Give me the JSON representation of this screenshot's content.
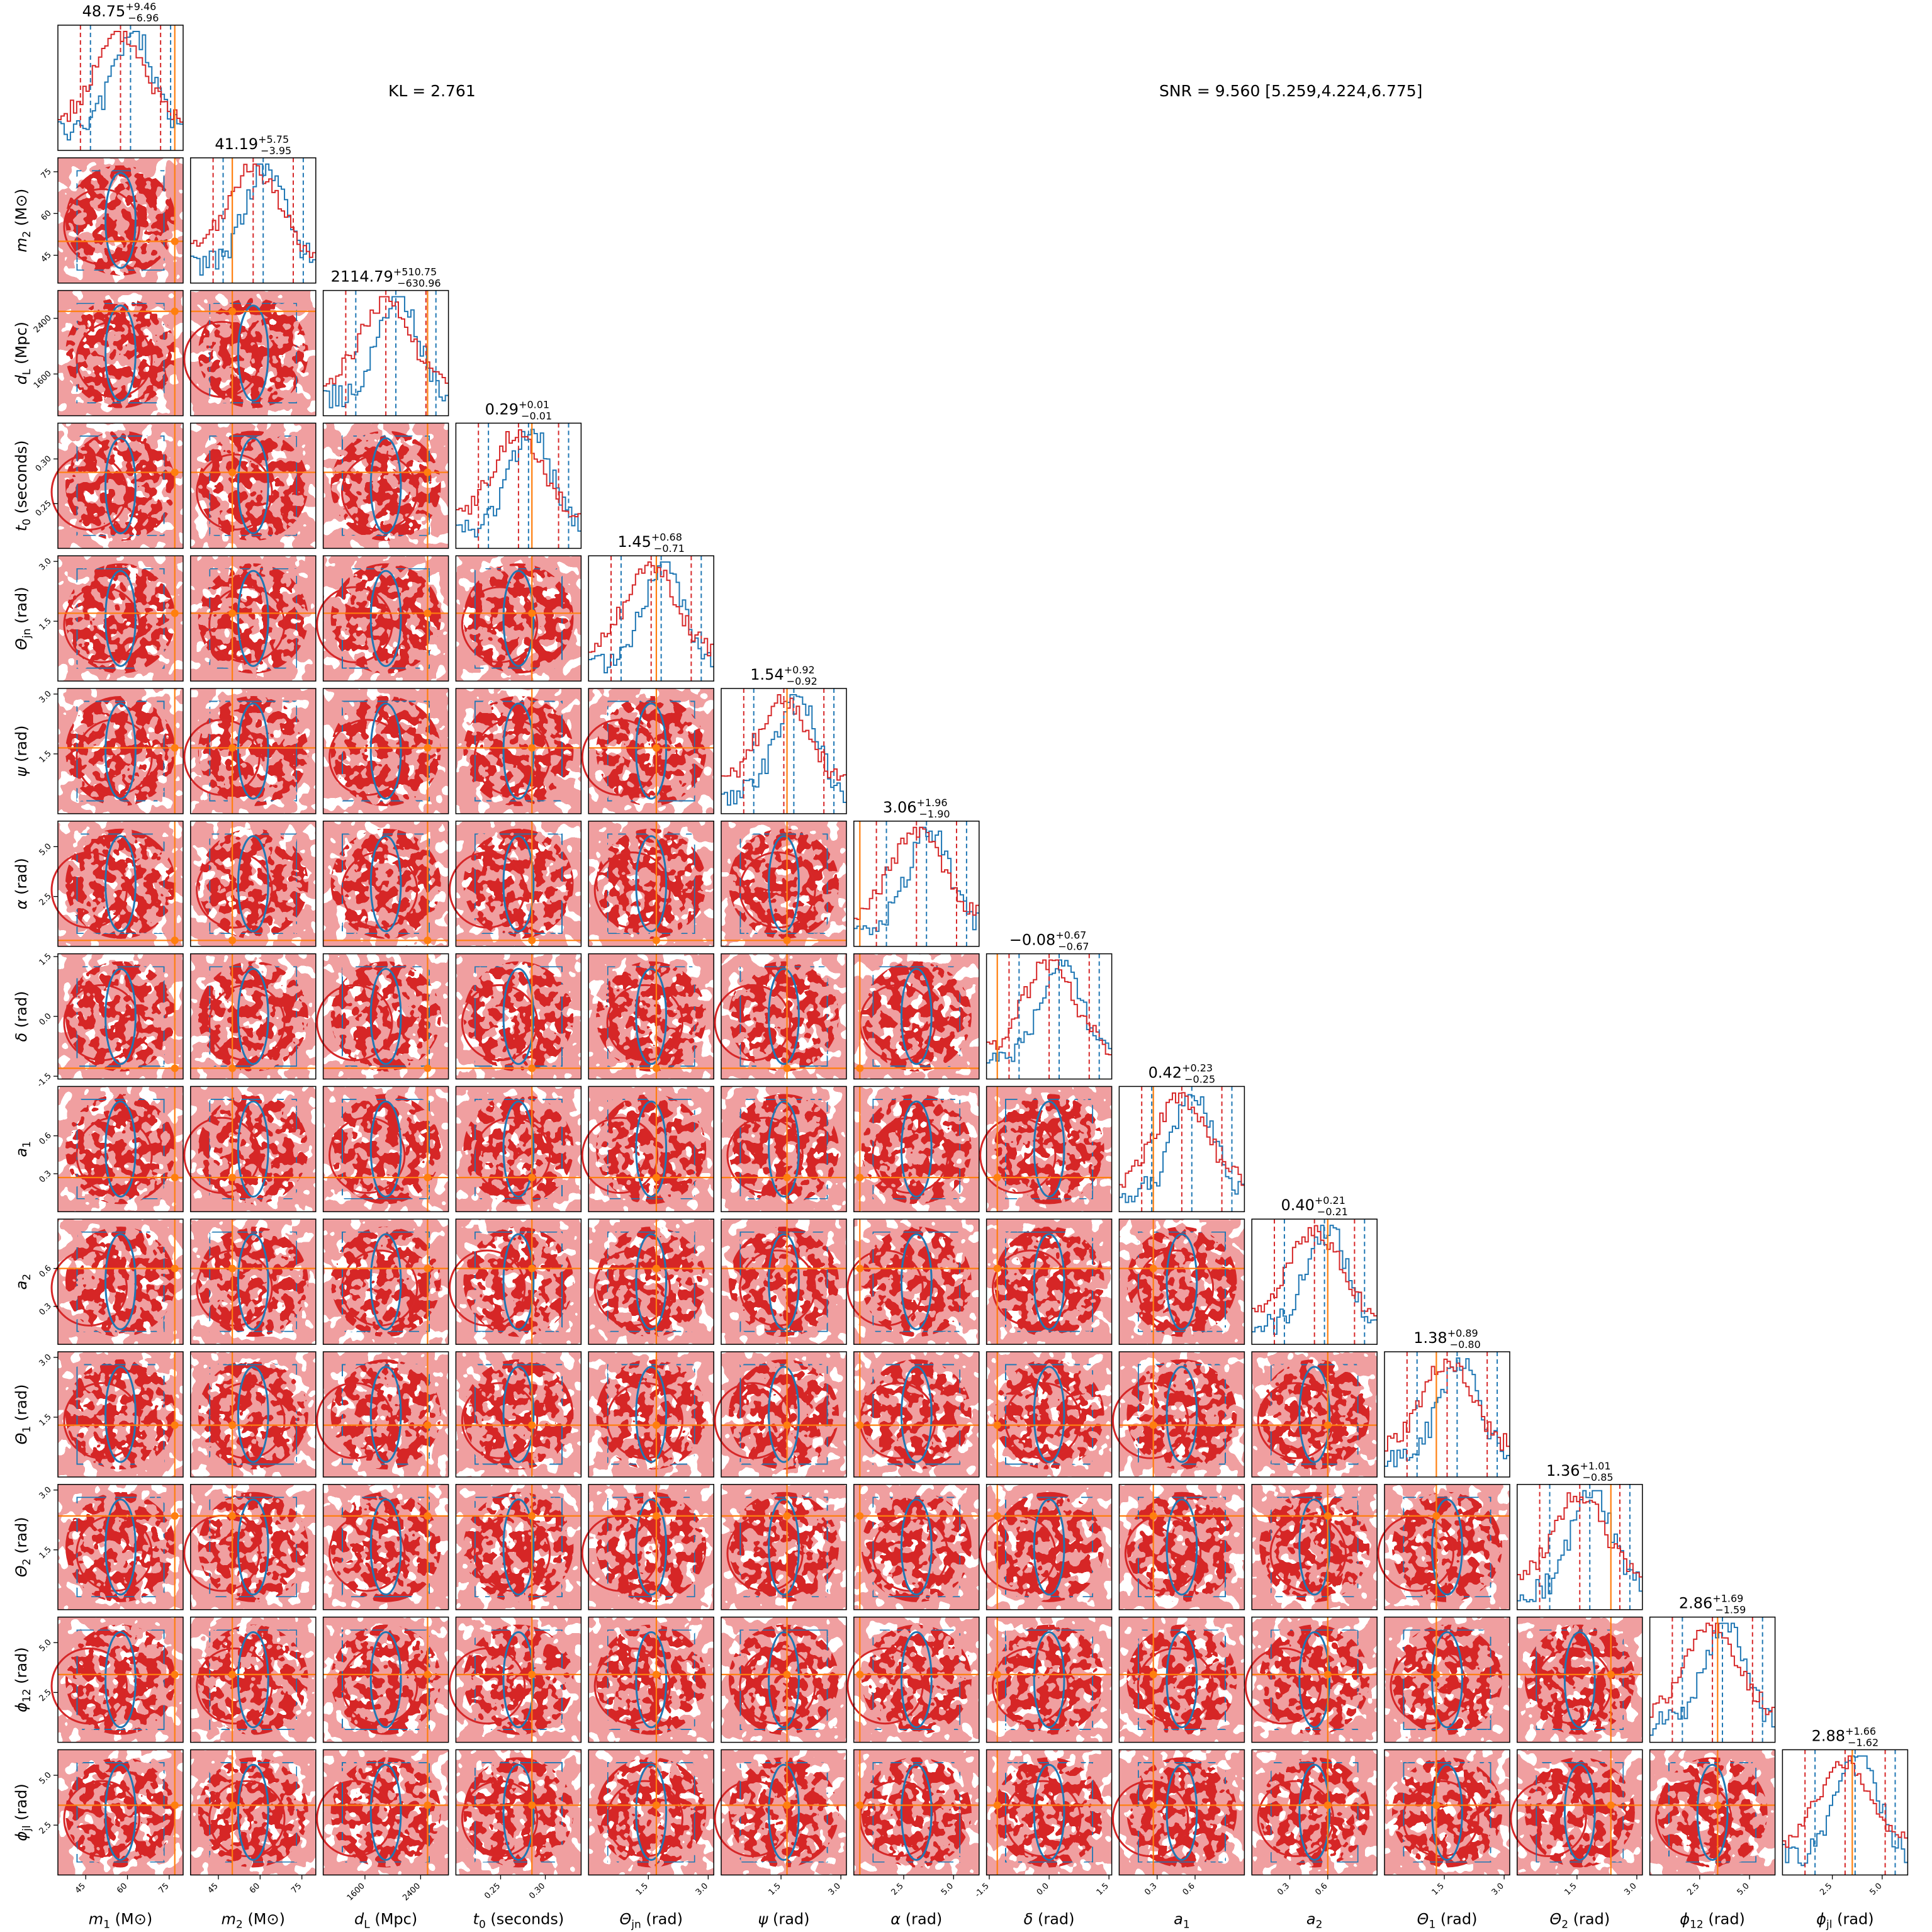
{
  "annotations": {
    "kl": "KL = 2.761",
    "snr": "SNR = 9.560 [5.259,4.224,6.775]"
  },
  "colors": {
    "posterior_a": "#d62728",
    "posterior_a_fill": "#f09a9b",
    "posterior_b": "#1f77b4",
    "truth": "#ff7f0e"
  },
  "chart_data": {
    "type": "corner",
    "title": "",
    "parameters": [
      {
        "label": "m₁ (M⊙)",
        "sym": "m",
        "sub": "1",
        "unit": "(M⊙)",
        "range": [
          35,
          80
        ],
        "ticks": [
          45,
          60,
          75
        ],
        "truth": 77,
        "title": {
          "median": "48.75",
          "plus": "+9.46",
          "minus": "−6.96"
        }
      },
      {
        "label": "m₂ (M⊙)",
        "sym": "m",
        "sub": "2",
        "unit": "(M⊙)",
        "range": [
          35,
          80
        ],
        "ticks": [
          45,
          60,
          75
        ],
        "truth": 50,
        "title": {
          "median": "41.19",
          "plus": "+5.75",
          "minus": "−3.95"
        }
      },
      {
        "label": "d_L (Mpc)",
        "sym": "d",
        "sub": "L",
        "unit": "(Mpc)",
        "range": [
          1000,
          2800
        ],
        "ticks": [
          1600,
          2400
        ],
        "truth": 2500,
        "title": {
          "median": "2114.79",
          "plus": "+510.75",
          "minus": "−630.96"
        }
      },
      {
        "label": "t₀ (seconds)",
        "sym": "t",
        "sub": "0",
        "unit": "(seconds)",
        "range": [
          0.2,
          0.34
        ],
        "ticks": [
          0.25,
          0.3
        ],
        "tickfmt": 2,
        "truth": 0.285,
        "title": {
          "median": "0.29",
          "plus": "+0.01",
          "minus": "−0.01"
        }
      },
      {
        "label": "Θ_jn (rad)",
        "sym": "Θ",
        "sub": "jn",
        "unit": "(rad)",
        "range": [
          0,
          3.14
        ],
        "ticks": [
          1.5,
          3.0
        ],
        "tickfmt": 1,
        "truth": 1.7,
        "title": {
          "median": "1.45",
          "plus": "+0.68",
          "minus": "−0.71"
        }
      },
      {
        "label": "ψ (rad)",
        "sym": "ψ",
        "sub": "",
        "unit": "(rad)",
        "range": [
          0,
          3.14
        ],
        "ticks": [
          1.5,
          3.0
        ],
        "tickfmt": 1,
        "truth": 1.65,
        "title": {
          "median": "1.54",
          "plus": "+0.92",
          "minus": "−0.92"
        }
      },
      {
        "label": "α (rad)",
        "sym": "α",
        "sub": "",
        "unit": "(rad)",
        "range": [
          0,
          6.28
        ],
        "ticks": [
          2.5,
          5.0
        ],
        "tickfmt": 1,
        "truth": 0.3,
        "title": {
          "median": "3.06",
          "plus": "+1.96",
          "minus": "−1.90"
        }
      },
      {
        "label": "δ (rad)",
        "sym": "δ",
        "sub": "",
        "unit": "(rad)",
        "range": [
          -1.57,
          1.57
        ],
        "ticks": [
          -1.5,
          0.0,
          1.5
        ],
        "tickfmt": 1,
        "truth": -1.3,
        "title": {
          "median": "−0.08",
          "plus": "+0.67",
          "minus": "−0.67"
        }
      },
      {
        "label": "a₁",
        "sym": "a",
        "sub": "1",
        "unit": "",
        "range": [
          0,
          0.99
        ],
        "ticks": [
          0.3,
          0.6
        ],
        "tickfmt": 1,
        "truth": 0.27,
        "title": {
          "median": "0.42",
          "plus": "+0.23",
          "minus": "−0.25"
        }
      },
      {
        "label": "a₂",
        "sym": "a",
        "sub": "2",
        "unit": "",
        "range": [
          0,
          0.99
        ],
        "ticks": [
          0.3,
          0.6
        ],
        "tickfmt": 1,
        "truth": 0.6,
        "title": {
          "median": "0.40",
          "plus": "+0.21",
          "minus": "−0.21"
        }
      },
      {
        "label": "Θ₁ (rad)",
        "sym": "Θ",
        "sub": "1",
        "unit": "(rad)",
        "range": [
          0,
          3.14
        ],
        "ticks": [
          1.5,
          3.0
        ],
        "tickfmt": 1,
        "truth": 1.3,
        "title": {
          "median": "1.38",
          "plus": "+0.89",
          "minus": "−0.80"
        }
      },
      {
        "label": "Θ₂ (rad)",
        "sym": "Θ",
        "sub": "2",
        "unit": "(rad)",
        "range": [
          0,
          3.14
        ],
        "ticks": [
          1.5,
          3.0
        ],
        "tickfmt": 1,
        "truth": 2.35,
        "title": {
          "median": "1.36",
          "plus": "+1.01",
          "minus": "−0.85"
        }
      },
      {
        "label": "ϕ₁₂ (rad)",
        "sym": "ϕ",
        "sub": "12",
        "unit": "(rad)",
        "range": [
          0,
          6.28
        ],
        "ticks": [
          2.5,
          5.0
        ],
        "tickfmt": 1,
        "truth": 3.4,
        "title": {
          "median": "2.86",
          "plus": "+1.69",
          "minus": "−1.59"
        }
      },
      {
        "label": "ϕ_jl (rad)",
        "sym": "ϕ",
        "sub": "jl",
        "unit": "(rad)",
        "range": [
          0,
          6.28
        ],
        "ticks": [
          2.5,
          5.0
        ],
        "tickfmt": 1,
        "truth": 3.5,
        "title": {
          "median": "2.88",
          "plus": "+1.66",
          "minus": "−1.62"
        }
      }
    ]
  }
}
